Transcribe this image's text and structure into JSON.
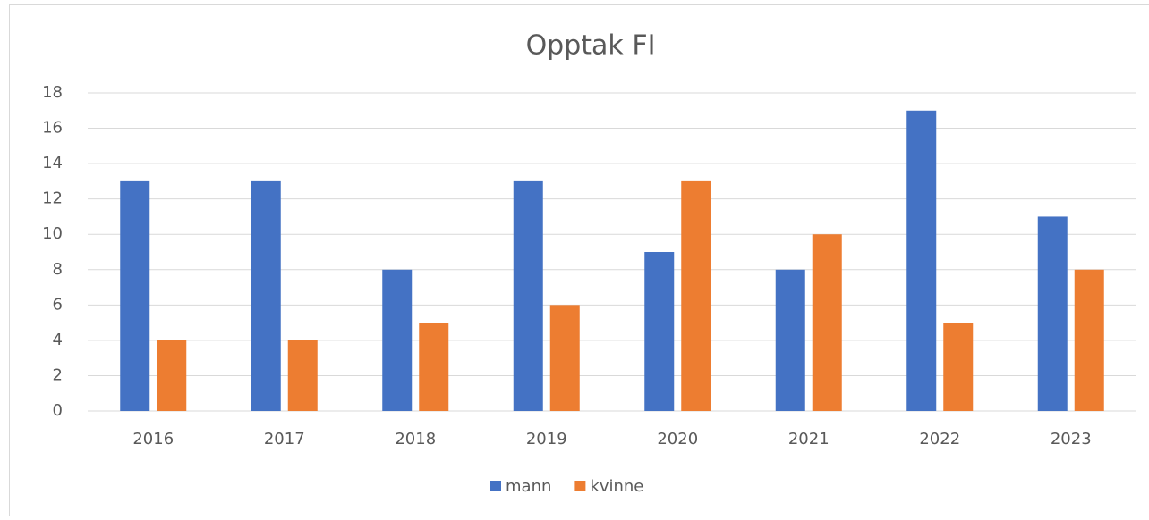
{
  "chart_data": {
    "type": "bar",
    "title": "Opptak FI",
    "categories": [
      "2016",
      "2017",
      "2018",
      "2019",
      "2020",
      "2021",
      "2022",
      "2023"
    ],
    "series": [
      {
        "name": "mann",
        "color": "#4472c4",
        "values": [
          13,
          13,
          8,
          13,
          9,
          8,
          17,
          11
        ]
      },
      {
        "name": "kvinne",
        "color": "#ed7d31",
        "values": [
          4,
          4,
          5,
          6,
          13,
          10,
          5,
          8
        ]
      }
    ],
    "ylim": [
      0,
      18
    ],
    "yticks": [
      0,
      2,
      4,
      6,
      8,
      10,
      12,
      14,
      16,
      18
    ],
    "grid": true,
    "legend": "bottom"
  }
}
